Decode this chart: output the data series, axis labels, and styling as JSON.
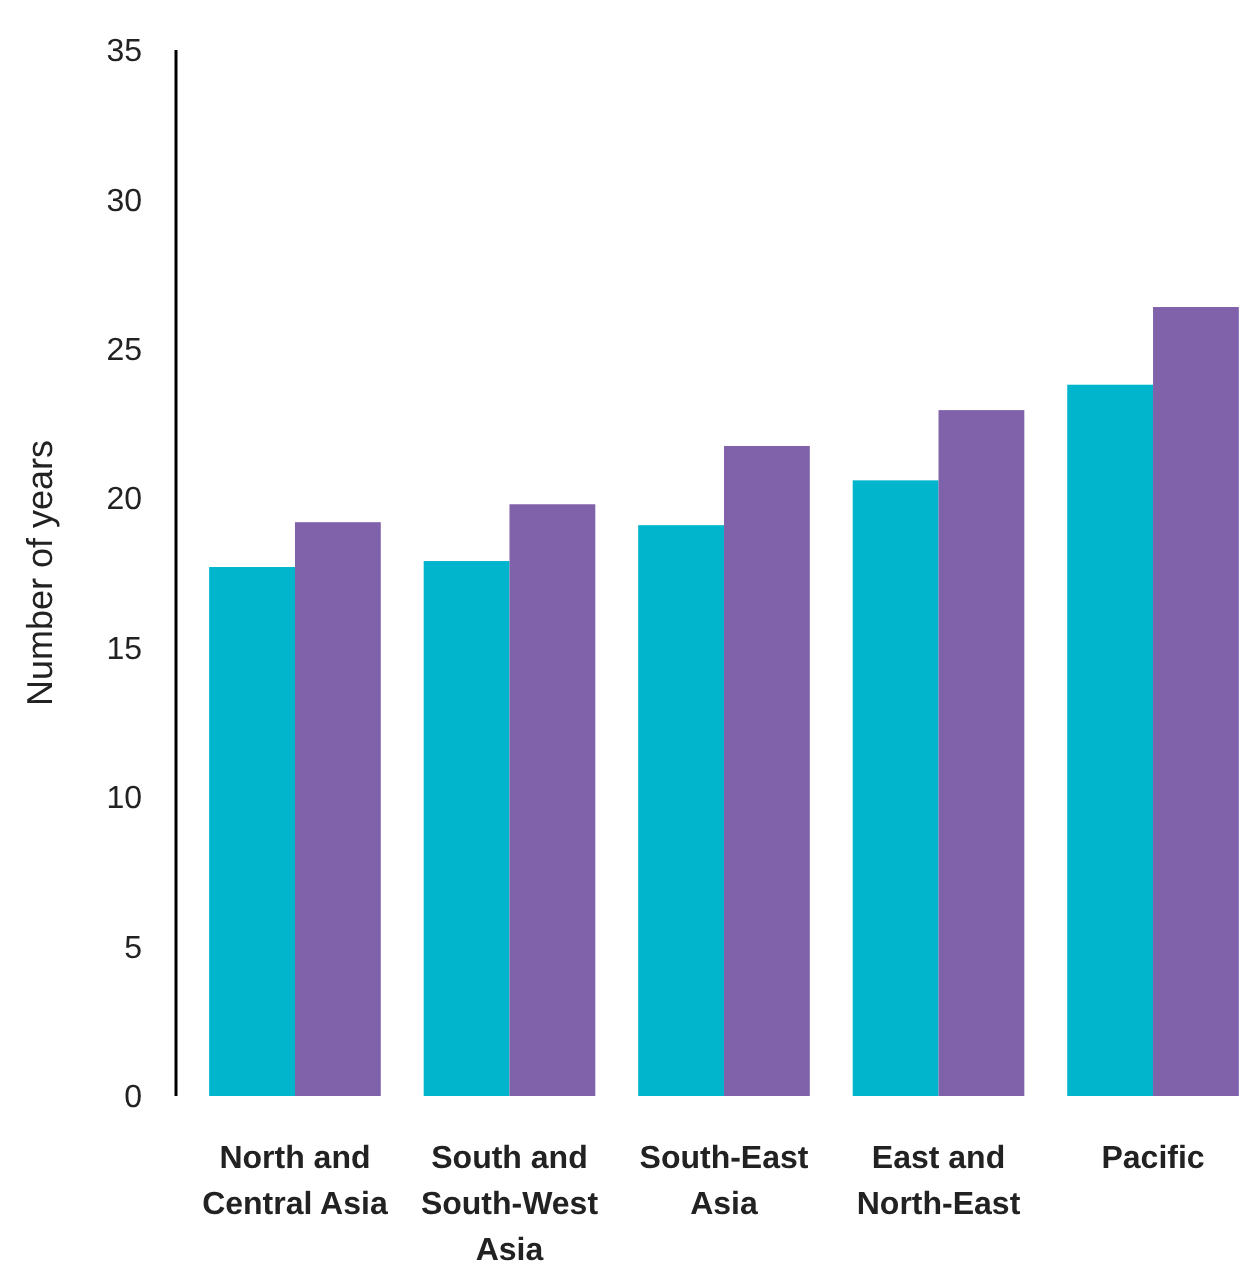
{
  "chart_data": {
    "type": "bar",
    "ylabel": "Number of years",
    "categories": [
      "North and Central Asia",
      "South and South-West Asia",
      "South-East Asia",
      "East and North-East",
      "Pacific"
    ],
    "series": [
      {
        "color": "#00b5cc",
        "values": [
          17.7,
          17.9,
          19.1,
          20.6,
          23.8
        ]
      },
      {
        "color": "#8062aa",
        "values": [
          19.2,
          19.8,
          21.75,
          22.95,
          26.4
        ]
      }
    ],
    "ylim": [
      0,
      35
    ],
    "yticks": [
      0,
      5,
      10,
      15,
      20,
      25,
      30,
      35
    ],
    "grid": false
  }
}
